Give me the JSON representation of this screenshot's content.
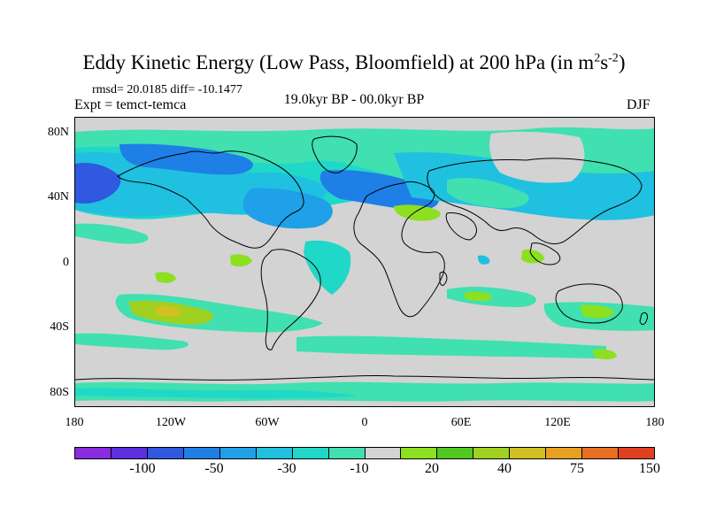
{
  "title": {
    "main": "Eddy Kinetic Energy (Low Pass, Bloomfield) at 200 hPa (in m",
    "sup1": "2",
    "mid": "s",
    "sup2": "-2",
    "end": ")"
  },
  "stats": "rmsd= 20.0185 diff= -10.1477",
  "expt": "Expt = temct-temca",
  "period": "19.0kyr BP - 00.0kyr BP",
  "season": "DJF",
  "lat_labels": [
    "80N",
    "40N",
    "0",
    "40S",
    "80S"
  ],
  "lon_labels": [
    "180",
    "120W",
    "60W",
    "0",
    "60E",
    "120E",
    "180"
  ],
  "colorbar": {
    "colors": [
      "#8a2be2",
      "#5a30e0",
      "#3058e0",
      "#1e7fe6",
      "#1fa0e8",
      "#20c0e0",
      "#20d8c8",
      "#40e0b0",
      "#d3d3d3",
      "#8ce020",
      "#50c820",
      "#a0d020",
      "#d0c020",
      "#e8a020",
      "#e87020",
      "#e04020"
    ],
    "labels": [
      "-100",
      "-50",
      "-30",
      "-10",
      "20",
      "40",
      "75",
      "150"
    ]
  },
  "palette": {
    "land_outline": "#000000",
    "background": "#d3d3d3"
  }
}
